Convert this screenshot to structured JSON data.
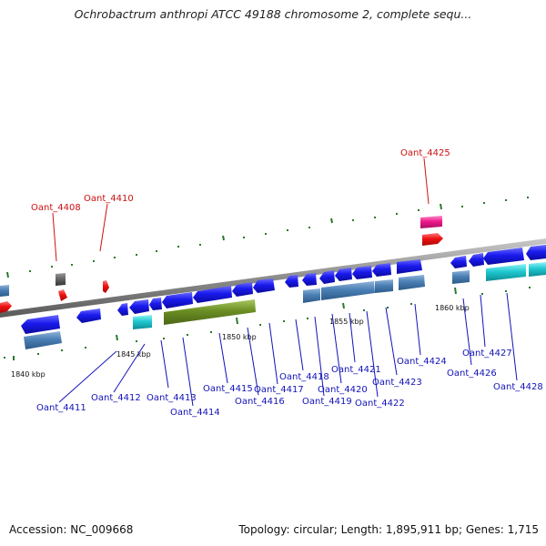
{
  "header": {
    "title": "Ochrobactrum anthropi ATCC 49188 chromosome 2, complete sequ..."
  },
  "footer": {
    "accession": "Accession: NC_009668",
    "stats": "Topology: circular; Length: 1,895,911 bp; Genes: 1,715"
  },
  "colors": {
    "backbone": "#8c8c8c",
    "gene_blue": "#1a1aee",
    "gene_steel": "#4a7fb5",
    "gene_cyan": "#1ec8d0",
    "gene_olive": "#6b8e23",
    "gene_red": "#ee1111",
    "gene_pink": "#ee1a8c",
    "gene_gray": "#666666",
    "tick": "#2a7a2a",
    "label_blue": "#1212b8",
    "label_red": "#cc1111"
  },
  "scale_labels": [
    "1840 kbp",
    "1845 kbp",
    "1850 kbp",
    "1855 kbp",
    "1860 kbp"
  ],
  "gene_labels": {
    "Oant_4408": "Oant_4408",
    "Oant_4410": "Oant_4410",
    "Oant_4411": "Oant_4411",
    "Oant_4412": "Oant_4412",
    "Oant_4413": "Oant_4413",
    "Oant_4414": "Oant_4414",
    "Oant_4415": "Oant_4415",
    "Oant_4416": "Oant_4416",
    "Oant_4417": "Oant_4417",
    "Oant_4418": "Oant_4418",
    "Oant_4419": "Oant_4419",
    "Oant_4420": "Oant_4420",
    "Oant_4421": "Oant_4421",
    "Oant_4422": "Oant_4422",
    "Oant_4423": "Oant_4423",
    "Oant_4424": "Oant_4424",
    "Oant_4425": "Oant_4425",
    "Oant_4426": "Oant_4426",
    "Oant_4427": "Oant_4427",
    "Oant_4428": "Oant_4428"
  }
}
